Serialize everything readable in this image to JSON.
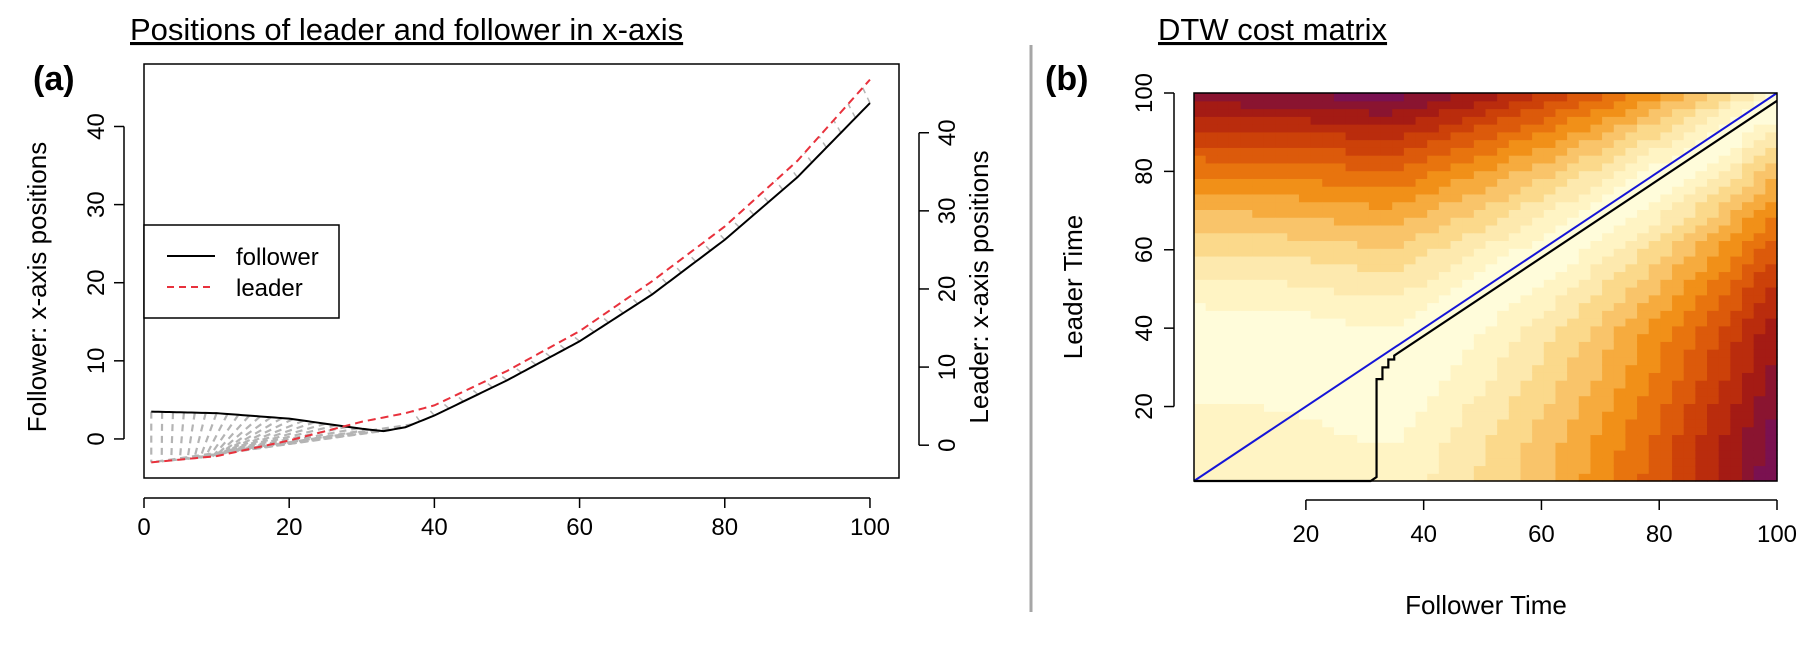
{
  "chart_data": [
    {
      "panel_label": "(a)",
      "type": "line",
      "title": "Positions of leader and follower in x-axis",
      "ylabel": "Follower: x-axis positions",
      "y2label": "Leader: x-axis positions",
      "xlim": [
        0,
        104
      ],
      "ylim": [
        -5,
        48
      ],
      "x_ticks": [
        0,
        20,
        40,
        60,
        80,
        100
      ],
      "y_ticks": [
        0,
        10,
        20,
        30,
        40
      ],
      "y2_ticks": [
        0,
        10,
        20,
        30,
        40
      ],
      "legend": {
        "placement": "left-middle",
        "entries": [
          "follower",
          "leader"
        ]
      },
      "series": [
        {
          "name": "follower",
          "color": "#000000",
          "style": "solid",
          "x": [
            1,
            10,
            20,
            30,
            33,
            36,
            40,
            50,
            60,
            70,
            80,
            90,
            100
          ],
          "y": [
            3.5,
            3.3,
            2.6,
            1.3,
            1.0,
            1.5,
            3.0,
            7.5,
            12.5,
            18.5,
            25.5,
            33.5,
            43
          ]
        },
        {
          "name": "leader",
          "color": "#e8313c",
          "style": "dashed",
          "x": [
            1,
            10,
            20,
            30,
            36,
            40,
            50,
            60,
            70,
            80,
            90,
            100
          ],
          "y": [
            -3,
            -2.2,
            -0.2,
            2.2,
            3.3,
            4.3,
            8.7,
            13.8,
            20.2,
            27.2,
            35.6,
            46
          ]
        }
      ],
      "alignment_color": "#b4b4b4"
    },
    {
      "panel_label": "(b)",
      "type": "heatmap",
      "title": "DTW cost matrix",
      "xlabel": "Follower Time",
      "ylabel": "Leader Time",
      "xlim": [
        1,
        100
      ],
      "ylim": [
        1,
        100
      ],
      "x_ticks": [
        20,
        40,
        60,
        80,
        100
      ],
      "y_ticks": [
        20,
        40,
        60,
        80,
        100
      ],
      "diagonal_color": "#1515d8",
      "path_color": "#000000",
      "warping_path": {
        "x": [
          1,
          31,
          32,
          32,
          33,
          33,
          34,
          34,
          35,
          35,
          100
        ],
        "y": [
          1,
          1,
          2,
          27,
          27,
          30,
          30,
          32,
          32,
          33,
          98
        ]
      }
    }
  ]
}
